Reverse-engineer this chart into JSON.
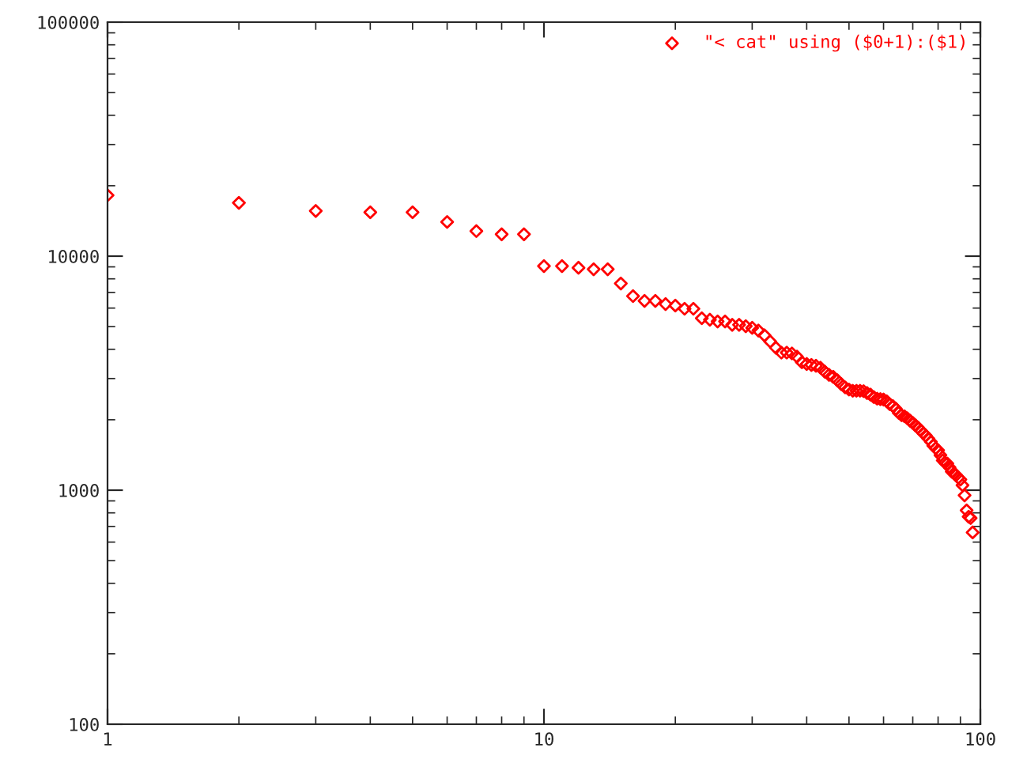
{
  "chart_data": {
    "type": "scatter",
    "log": "xy",
    "legend": "top right",
    "marker": "diamond",
    "grid": false,
    "x": [
      1,
      2,
      3,
      4,
      5,
      6,
      7,
      8,
      9,
      10,
      11,
      12,
      13,
      14,
      15,
      16,
      17,
      18,
      19,
      20,
      21,
      22,
      23,
      24,
      25,
      26,
      27,
      28,
      29,
      30,
      31,
      32,
      33,
      34,
      35,
      36,
      37,
      38,
      39,
      40,
      41,
      42,
      43,
      44,
      45,
      46,
      47,
      48,
      49,
      50,
      51,
      52,
      53,
      54,
      55,
      56,
      57,
      58,
      59,
      60,
      61,
      62,
      63,
      64,
      65,
      66,
      67,
      68,
      69,
      70,
      71,
      72,
      73,
      74,
      75,
      76,
      77,
      78,
      79,
      80,
      81,
      82,
      83,
      84,
      85,
      86,
      87,
      88,
      89,
      90,
      91,
      92,
      93,
      94,
      95,
      96
    ],
    "xlim": [
      1,
      100
    ],
    "xticks": [
      1,
      10,
      100
    ],
    "ylim": [
      100,
      100000
    ],
    "yticks": [
      100,
      1000,
      10000,
      100000
    ],
    "series": [
      {
        "name": "\"< cat\" using ($0+1):($1)",
        "color": "#ff0000",
        "values": [
          18200,
          16900,
          15600,
          15400,
          15400,
          14000,
          12800,
          12400,
          12400,
          9070,
          9070,
          8920,
          8790,
          8790,
          7640,
          6750,
          6440,
          6440,
          6240,
          6150,
          5960,
          5960,
          5430,
          5350,
          5260,
          5260,
          5090,
          5090,
          5020,
          4940,
          4810,
          4590,
          4320,
          4060,
          3870,
          3870,
          3840,
          3720,
          3520,
          3460,
          3430,
          3400,
          3340,
          3210,
          3110,
          3050,
          2950,
          2840,
          2750,
          2690,
          2660,
          2660,
          2660,
          2650,
          2600,
          2560,
          2500,
          2460,
          2450,
          2440,
          2400,
          2330,
          2290,
          2230,
          2140,
          2090,
          2070,
          2030,
          1980,
          1940,
          1890,
          1850,
          1800,
          1750,
          1710,
          1660,
          1610,
          1550,
          1510,
          1480,
          1410,
          1340,
          1310,
          1300,
          1250,
          1200,
          1180,
          1160,
          1130,
          1110,
          1050,
          950,
          820,
          770,
          760,
          660
        ]
      }
    ]
  }
}
